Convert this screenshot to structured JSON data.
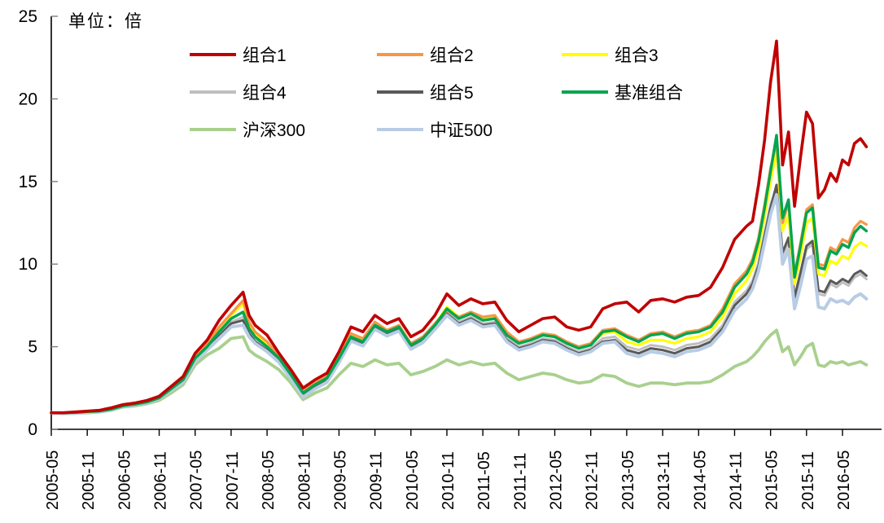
{
  "chart_data": {
    "type": "line",
    "title": "单位：倍",
    "unit_label": "单位：倍",
    "grid": false,
    "legend_position": "top-center",
    "y_ticks": [
      0,
      5,
      10,
      15,
      20,
      25
    ],
    "ylim": [
      0,
      25
    ],
    "x_start": "2005-05",
    "x_end": "2016-09",
    "x_tick_labels": [
      "2005-05",
      "2005-11",
      "2006-05",
      "2006-11",
      "2007-05",
      "2007-11",
      "2008-05",
      "2008-11",
      "2009-05",
      "2009-11",
      "2010-05",
      "2010-11",
      "2011-05",
      "2011-11",
      "2012-05",
      "2012-11",
      "2013-05",
      "2013-11",
      "2014-05",
      "2014-11",
      "2015-05",
      "2015-11",
      "2016-05"
    ],
    "x_month_offsets": [
      0,
      2,
      4,
      6,
      8,
      10,
      12,
      14,
      16,
      18,
      20,
      22,
      24,
      26,
      28,
      30,
      32,
      33,
      34,
      36,
      38,
      40,
      42,
      44,
      46,
      48,
      50,
      52,
      54,
      56,
      58,
      60,
      62,
      64,
      66,
      68,
      70,
      72,
      74,
      76,
      78,
      80,
      82,
      84,
      86,
      88,
      90,
      92,
      94,
      96,
      98,
      100,
      102,
      104,
      106,
      108,
      110,
      112,
      114,
      116,
      117,
      118,
      119,
      120,
      121,
      122,
      123,
      124,
      125,
      126,
      127,
      128,
      129,
      130,
      131,
      132,
      133,
      134,
      135,
      136
    ],
    "series": [
      {
        "name": "组合1",
        "color": "#C00000",
        "width": 3.6,
        "values": [
          1.0,
          1.0,
          1.05,
          1.1,
          1.15,
          1.3,
          1.5,
          1.6,
          1.75,
          2.0,
          2.6,
          3.2,
          4.6,
          5.4,
          6.6,
          7.5,
          8.3,
          6.9,
          6.3,
          5.7,
          4.6,
          3.6,
          2.5,
          3.0,
          3.4,
          4.7,
          6.2,
          5.9,
          6.9,
          6.4,
          6.7,
          5.6,
          6.0,
          6.9,
          8.2,
          7.5,
          7.9,
          7.6,
          7.7,
          6.6,
          5.9,
          6.3,
          6.7,
          6.8,
          6.2,
          6.0,
          6.2,
          7.3,
          7.6,
          7.7,
          7.1,
          7.8,
          7.9,
          7.7,
          8.0,
          8.1,
          8.6,
          9.8,
          11.5,
          12.3,
          12.6,
          14.8,
          17.5,
          21.0,
          23.5,
          16.0,
          18.0,
          13.5,
          16.5,
          19.2,
          18.5,
          14.0,
          14.5,
          15.5,
          15.0,
          16.3,
          16.0,
          17.3,
          17.6,
          17.1
        ]
      },
      {
        "name": "组合2",
        "color": "#F79646",
        "width": 3.2,
        "values": [
          1.0,
          1.0,
          1.03,
          1.08,
          1.12,
          1.25,
          1.45,
          1.55,
          1.7,
          1.95,
          2.5,
          3.1,
          4.4,
          5.2,
          6.2,
          7.0,
          7.8,
          6.5,
          5.9,
          5.3,
          4.4,
          3.4,
          2.3,
          2.8,
          3.2,
          4.4,
          5.8,
          5.5,
          6.5,
          6.0,
          6.3,
          5.2,
          5.6,
          6.4,
          7.2,
          6.8,
          7.1,
          6.8,
          6.9,
          5.9,
          5.3,
          5.5,
          5.8,
          5.7,
          5.3,
          5.0,
          5.2,
          6.0,
          6.1,
          5.7,
          5.4,
          5.8,
          5.9,
          5.6,
          5.9,
          6.0,
          6.3,
          7.3,
          8.8,
          9.6,
          10.3,
          11.6,
          13.6,
          15.8,
          17.4,
          12.5,
          13.7,
          9.4,
          11.3,
          13.3,
          13.6,
          10.0,
          9.9,
          11.0,
          10.8,
          11.5,
          11.3,
          12.2,
          12.6,
          12.4
        ]
      },
      {
        "name": "组合3",
        "color": "#FFFF00",
        "width": 3.2,
        "values": [
          1.0,
          0.99,
          1.02,
          1.06,
          1.1,
          1.23,
          1.43,
          1.53,
          1.68,
          1.92,
          2.48,
          3.05,
          4.35,
          5.1,
          6.1,
          6.9,
          7.6,
          6.3,
          5.8,
          5.2,
          4.35,
          3.35,
          2.25,
          2.75,
          3.15,
          4.35,
          5.7,
          5.4,
          6.4,
          5.95,
          6.25,
          5.15,
          5.55,
          6.35,
          7.4,
          6.8,
          7.1,
          6.7,
          6.8,
          5.8,
          5.25,
          5.45,
          5.75,
          5.65,
          5.25,
          4.95,
          5.15,
          5.8,
          5.9,
          5.3,
          5.1,
          5.4,
          5.4,
          5.2,
          5.5,
          5.6,
          5.9,
          6.8,
          8.2,
          9.0,
          9.7,
          10.9,
          12.9,
          15.0,
          16.9,
          12.0,
          13.0,
          8.8,
          10.5,
          12.5,
          12.8,
          9.4,
          9.3,
          10.2,
          10.0,
          10.5,
          10.3,
          11.0,
          11.3,
          11.1
        ]
      },
      {
        "name": "组合4",
        "color": "#BFBFBF",
        "width": 3.0,
        "values": [
          1.0,
          0.98,
          1.0,
          1.05,
          1.08,
          1.2,
          1.4,
          1.5,
          1.63,
          1.88,
          2.4,
          2.95,
          4.2,
          4.9,
          5.75,
          6.5,
          6.8,
          5.9,
          5.4,
          4.9,
          4.2,
          3.2,
          2.1,
          2.6,
          3.0,
          4.2,
          5.5,
          5.2,
          6.2,
          5.8,
          6.1,
          5.0,
          5.4,
          6.2,
          7.1,
          6.5,
          6.8,
          6.4,
          6.5,
          5.5,
          5.0,
          5.2,
          5.5,
          5.4,
          5.0,
          4.7,
          4.9,
          5.5,
          5.6,
          5.0,
          4.8,
          5.1,
          5.0,
          4.8,
          5.1,
          5.2,
          5.5,
          6.3,
          7.7,
          8.4,
          9.0,
          10.1,
          11.9,
          13.6,
          14.6,
          10.5,
          11.4,
          7.8,
          9.3,
          10.9,
          11.2,
          8.2,
          8.1,
          8.8,
          8.6,
          8.9,
          8.7,
          9.2,
          9.4,
          9.1
        ]
      },
      {
        "name": "组合5",
        "color": "#595959",
        "width": 3.0,
        "values": [
          1.0,
          0.98,
          1.0,
          1.04,
          1.07,
          1.19,
          1.39,
          1.49,
          1.62,
          1.86,
          2.38,
          2.9,
          4.15,
          4.85,
          5.65,
          6.4,
          6.6,
          5.8,
          5.3,
          4.8,
          4.15,
          3.15,
          2.05,
          2.55,
          2.95,
          4.15,
          5.45,
          5.15,
          6.15,
          5.75,
          6.05,
          4.95,
          5.35,
          6.15,
          7.0,
          6.4,
          6.7,
          6.3,
          6.4,
          5.4,
          4.9,
          5.1,
          5.4,
          5.3,
          4.9,
          4.6,
          4.8,
          5.3,
          5.4,
          4.8,
          4.6,
          4.9,
          4.8,
          4.6,
          4.9,
          5.0,
          5.3,
          6.1,
          7.5,
          8.2,
          8.8,
          9.9,
          11.7,
          13.4,
          14.8,
          10.7,
          11.6,
          8.0,
          9.5,
          11.1,
          11.4,
          8.4,
          8.3,
          9.0,
          8.8,
          9.1,
          8.9,
          9.4,
          9.6,
          9.3
        ]
      },
      {
        "name": "基准组合",
        "color": "#00A550",
        "width": 3.4,
        "values": [
          1.0,
          1.0,
          1.02,
          1.07,
          1.1,
          1.22,
          1.42,
          1.52,
          1.65,
          1.9,
          2.45,
          3.0,
          4.3,
          5.0,
          5.9,
          6.7,
          7.1,
          6.1,
          5.6,
          5.0,
          4.3,
          3.3,
          2.2,
          2.7,
          3.1,
          4.3,
          5.6,
          5.3,
          6.3,
          5.9,
          6.2,
          5.1,
          5.5,
          6.3,
          7.3,
          6.7,
          7.0,
          6.6,
          6.7,
          5.7,
          5.2,
          5.4,
          5.7,
          5.6,
          5.2,
          4.9,
          5.1,
          5.9,
          6.0,
          5.6,
          5.3,
          5.7,
          5.8,
          5.5,
          5.8,
          5.9,
          6.2,
          7.1,
          8.6,
          9.4,
          10.1,
          11.4,
          13.4,
          15.6,
          17.8,
          12.8,
          13.9,
          9.2,
          11.1,
          13.1,
          13.4,
          9.8,
          9.7,
          10.8,
          10.6,
          11.2,
          11.0,
          11.9,
          12.3,
          12.0
        ]
      },
      {
        "name": "沪深300",
        "color": "#A9D08E",
        "width": 3.8,
        "values": [
          1.0,
          0.95,
          0.97,
          1.0,
          1.05,
          1.15,
          1.35,
          1.42,
          1.55,
          1.75,
          2.2,
          2.7,
          3.9,
          4.5,
          4.9,
          5.5,
          5.6,
          4.8,
          4.5,
          4.1,
          3.6,
          2.8,
          1.8,
          2.2,
          2.5,
          3.3,
          4.0,
          3.8,
          4.2,
          3.9,
          4.0,
          3.3,
          3.5,
          3.8,
          4.2,
          3.9,
          4.1,
          3.9,
          4.0,
          3.4,
          3.0,
          3.2,
          3.4,
          3.3,
          3.0,
          2.8,
          2.9,
          3.3,
          3.2,
          2.8,
          2.6,
          2.8,
          2.8,
          2.7,
          2.8,
          2.8,
          2.9,
          3.3,
          3.8,
          4.1,
          4.4,
          4.8,
          5.3,
          5.7,
          6.0,
          4.7,
          5.0,
          3.9,
          4.4,
          5.0,
          5.2,
          3.9,
          3.8,
          4.1,
          4.0,
          4.1,
          3.9,
          4.0,
          4.1,
          3.9
        ]
      },
      {
        "name": "中证500",
        "color": "#B8CCE4",
        "width": 4.0,
        "values": [
          1.0,
          0.96,
          0.98,
          1.03,
          1.06,
          1.18,
          1.38,
          1.48,
          1.6,
          1.85,
          2.35,
          2.85,
          4.1,
          4.8,
          5.5,
          6.2,
          6.3,
          5.6,
          5.2,
          4.7,
          4.05,
          3.05,
          1.95,
          2.45,
          2.85,
          4.05,
          5.35,
          5.05,
          6.05,
          5.65,
          5.95,
          4.85,
          5.25,
          6.05,
          6.9,
          6.3,
          6.6,
          6.2,
          6.3,
          5.3,
          4.8,
          5.0,
          5.3,
          5.2,
          4.8,
          4.5,
          4.7,
          5.2,
          5.3,
          4.6,
          4.4,
          4.7,
          4.6,
          4.4,
          4.7,
          4.8,
          5.1,
          5.9,
          7.2,
          7.9,
          8.5,
          9.6,
          11.3,
          13.0,
          14.2,
          10.0,
          10.9,
          7.3,
          8.7,
          10.3,
          10.5,
          7.4,
          7.3,
          7.9,
          7.7,
          7.8,
          7.6,
          8.0,
          8.2,
          7.9
        ]
      }
    ],
    "draw_order": [
      "组合4",
      "组合5",
      "沪深300",
      "中证500",
      "组合3",
      "组合2",
      "基准组合",
      "组合1"
    ]
  }
}
